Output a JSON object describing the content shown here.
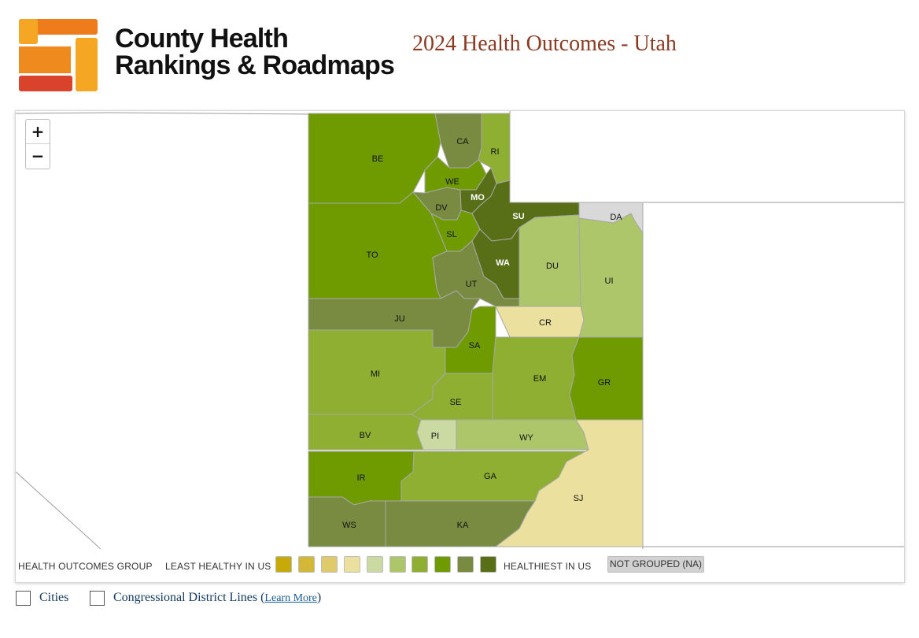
{
  "brand": {
    "line1": "County Health",
    "line2": "Rankings & Roadmaps",
    "colors": [
      "#f5a623",
      "#ef7c1a",
      "#d9422b"
    ]
  },
  "title": "2024 Health Outcomes - Utah",
  "zoom": {
    "in_label": "+",
    "out_label": "−"
  },
  "legend": {
    "group_label": "HEALTH OUTCOMES GROUP",
    "least_label": "LEAST HEALTHY IN US",
    "healthiest_label": "HEALTHIEST IN US",
    "na_label": "NOT GROUPED (NA)",
    "swatches": [
      "#c5aa0a",
      "#d2b836",
      "#dfcb6c",
      "#ebe09e",
      "#cbd9a3",
      "#adc66a",
      "#8faf33",
      "#6f9b00",
      "#788b40",
      "#586f17"
    ]
  },
  "counties": [
    {
      "abbr": "BE",
      "fill": "#6f9b00"
    },
    {
      "abbr": "CA",
      "fill": "#788b40"
    },
    {
      "abbr": "RI",
      "fill": "#8faf33"
    },
    {
      "abbr": "WE",
      "fill": "#6f9b00"
    },
    {
      "abbr": "MO",
      "fill": "#586f17"
    },
    {
      "abbr": "DV",
      "fill": "#788b40"
    },
    {
      "abbr": "SU",
      "fill": "#586f17"
    },
    {
      "abbr": "DA",
      "fill": "#d9d9d9"
    },
    {
      "abbr": "SL",
      "fill": "#6f9b00"
    },
    {
      "abbr": "TO",
      "fill": "#6f9b00"
    },
    {
      "abbr": "WA",
      "fill": "#586f17"
    },
    {
      "abbr": "DU",
      "fill": "#adc66a"
    },
    {
      "abbr": "UI",
      "fill": "#adc66a"
    },
    {
      "abbr": "UT",
      "fill": "#788b40"
    },
    {
      "abbr": "JU",
      "fill": "#788b40"
    },
    {
      "abbr": "CR",
      "fill": "#ebe09e"
    },
    {
      "abbr": "SA",
      "fill": "#6f9b00"
    },
    {
      "abbr": "MI",
      "fill": "#8faf33"
    },
    {
      "abbr": "EM",
      "fill": "#8faf33"
    },
    {
      "abbr": "GR",
      "fill": "#6f9b00"
    },
    {
      "abbr": "SE",
      "fill": "#8faf33"
    },
    {
      "abbr": "BV",
      "fill": "#8faf33"
    },
    {
      "abbr": "PI",
      "fill": "#cbd9a3"
    },
    {
      "abbr": "WY",
      "fill": "#adc66a"
    },
    {
      "abbr": "IR",
      "fill": "#6f9b00"
    },
    {
      "abbr": "GA",
      "fill": "#8faf33"
    },
    {
      "abbr": "SJ",
      "fill": "#ebe09e"
    },
    {
      "abbr": "WS",
      "fill": "#788b40"
    },
    {
      "abbr": "KA",
      "fill": "#788b40"
    }
  ],
  "controls": {
    "cities_label": "Cities",
    "districts_label": "Congressional District Lines (",
    "learn_more": "Learn More",
    "close_paren": ")"
  }
}
